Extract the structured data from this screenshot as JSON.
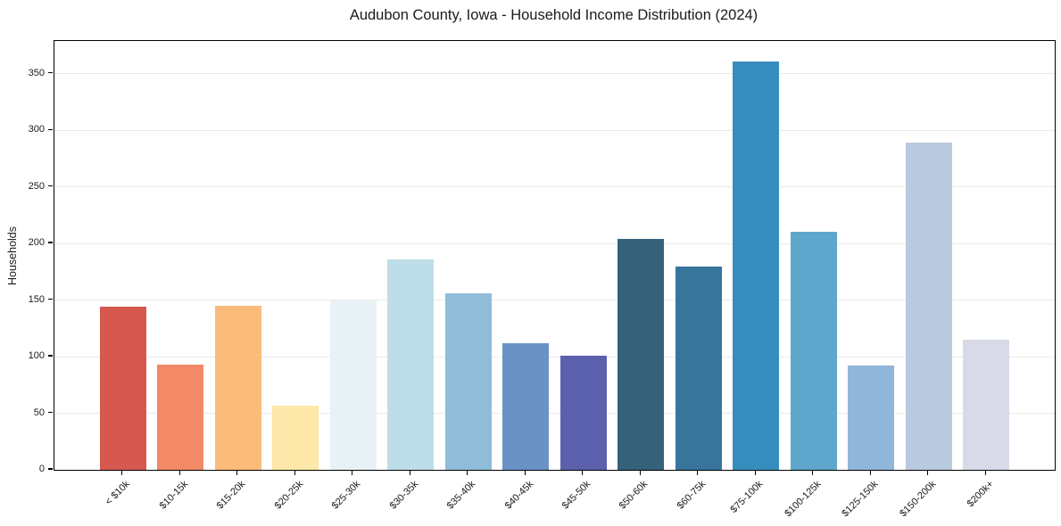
{
  "chart_data": {
    "type": "bar",
    "title": "Audubon County, Iowa - Household Income Distribution (2024)",
    "xlabel": "",
    "ylabel": "Households",
    "categories": [
      "< $10k",
      "$10-15k",
      "$15-20k",
      "$20-25k",
      "$25-30k",
      "$30-35k",
      "$35-40k",
      "$40-45k",
      "$45-50k",
      "$50-60k",
      "$60-75k",
      "$75-100k",
      "$100-125k",
      "$125-150k",
      "$150-200k",
      "$200k+"
    ],
    "values": [
      144,
      93,
      145,
      57,
      150,
      186,
      156,
      112,
      101,
      204,
      180,
      361,
      210,
      92,
      289,
      115
    ],
    "bar_colors": [
      "#d6584f",
      "#f28a68",
      "#fbbb7b",
      "#fde7a9",
      "#e8f2f6",
      "#bddee9",
      "#90bcda",
      "#6a92c4",
      "#5b61ac",
      "#35617a",
      "#38759d",
      "#378cbe",
      "#5ea6cb",
      "#90b6da",
      "#b9c9de",
      "#d8dae8"
    ],
    "yticks": [
      0,
      50,
      100,
      150,
      200,
      250,
      300,
      350
    ],
    "ylim": [
      0,
      379
    ],
    "grid": "horizontal",
    "legend": "none",
    "colors": {
      "background": "#ffffff",
      "grid": "#e9e9e9",
      "spine": "#000000",
      "text": "#1a1a1a"
    }
  }
}
